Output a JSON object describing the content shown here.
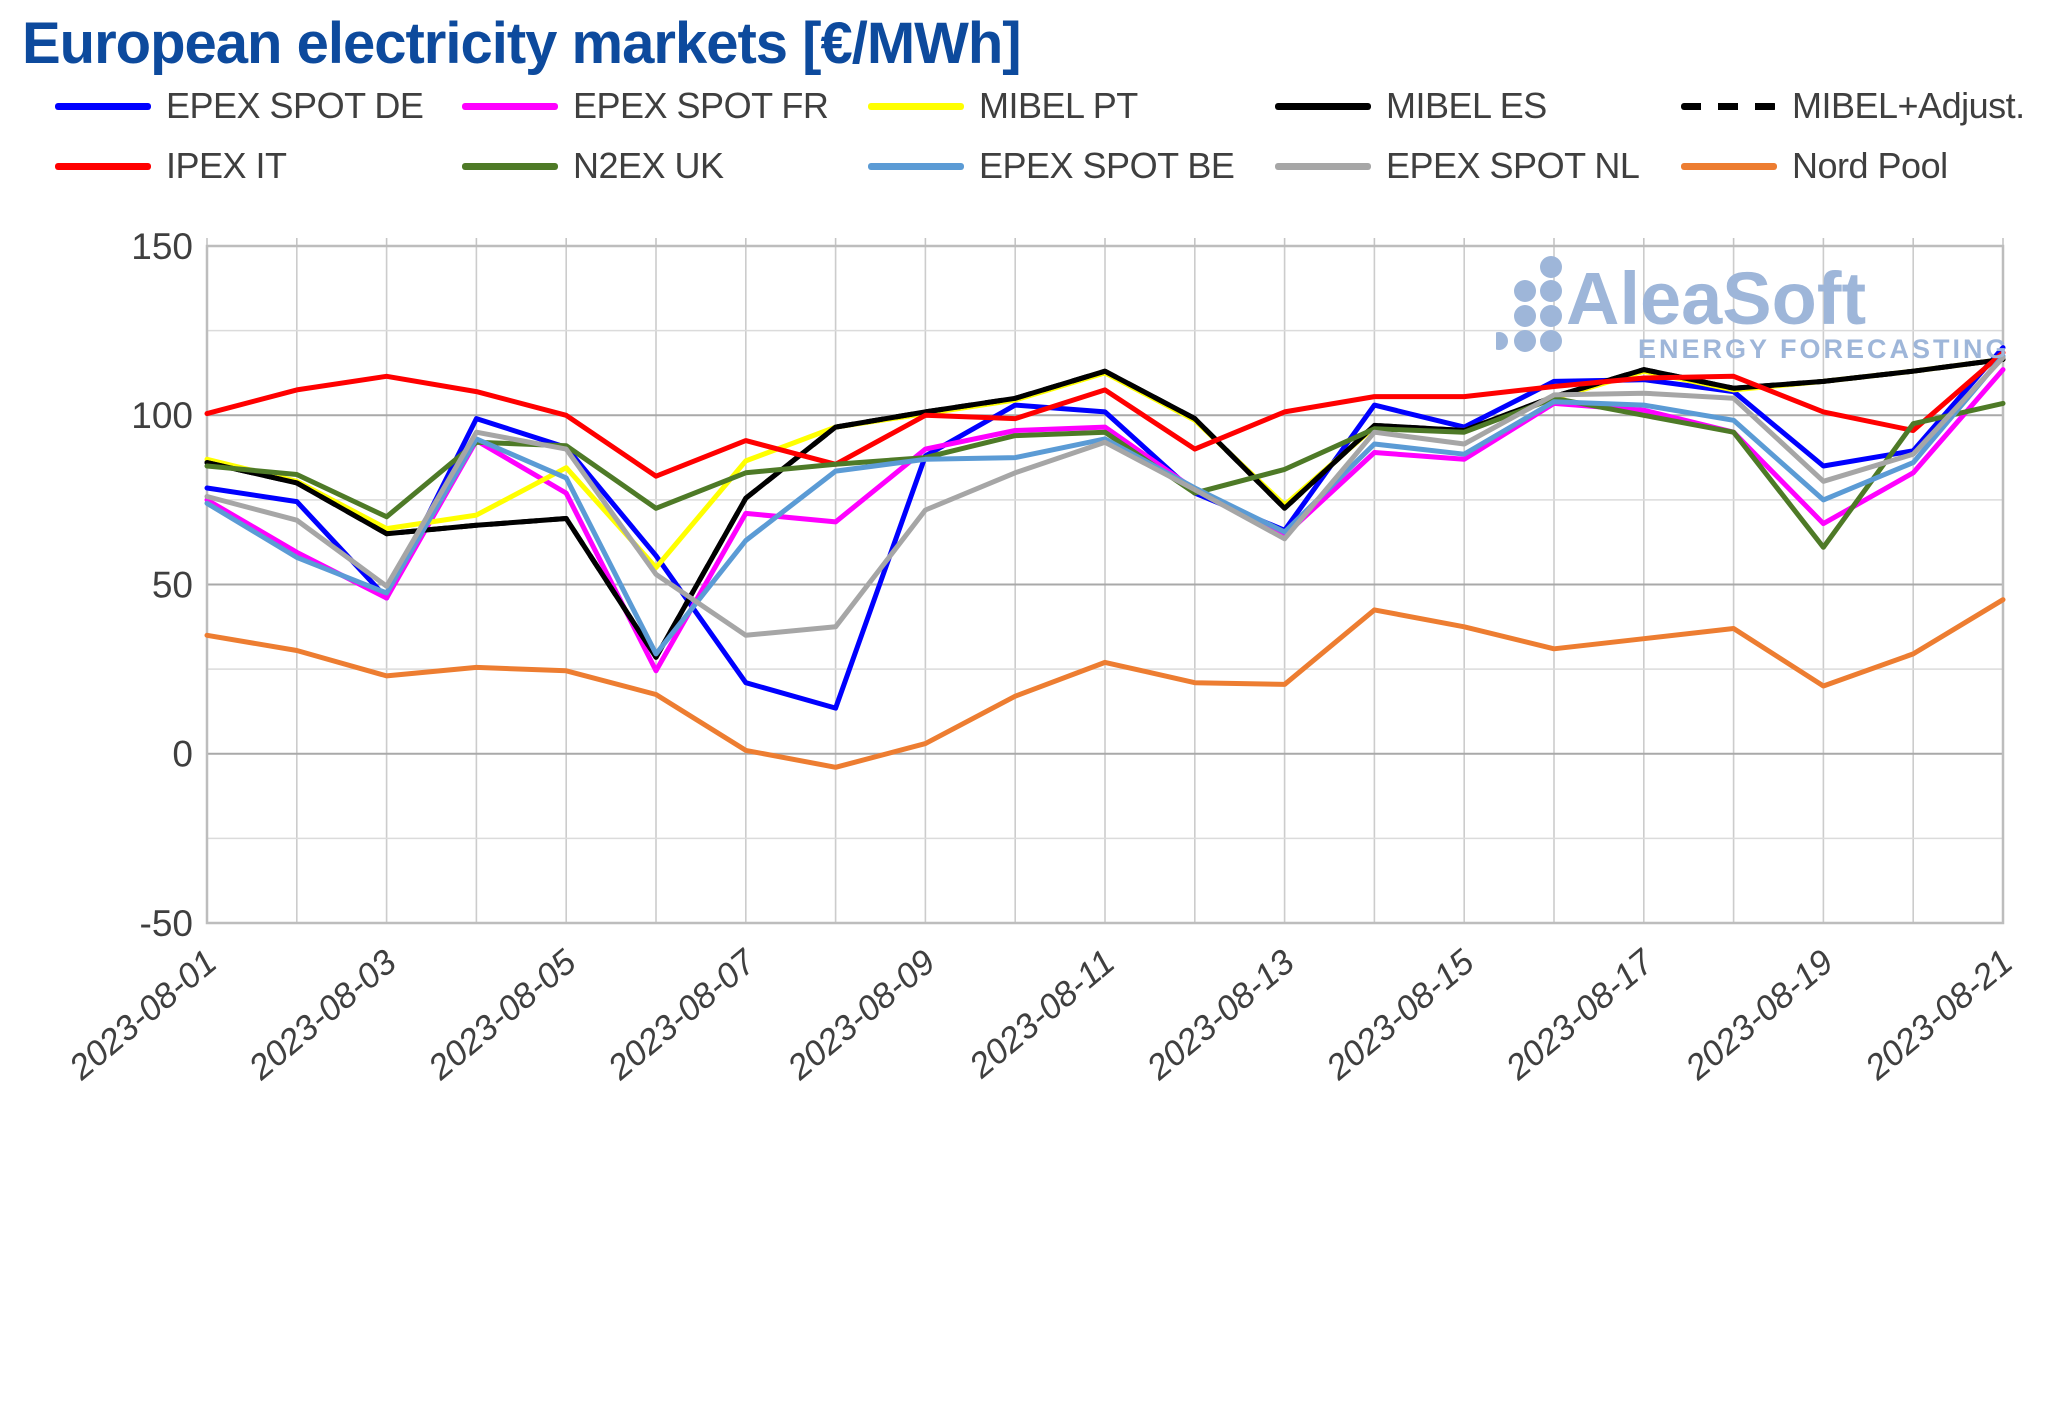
{
  "title": "European electricity markets [€/MWh]",
  "logo": {
    "name": "AleaSoft",
    "tagline": "ENERGY FORECASTING",
    "color": "#9eb6d9"
  },
  "title_color": "#0d4a9d",
  "chart_data": {
    "type": "line",
    "x": [
      "2023-08-01",
      "2023-08-02",
      "2023-08-03",
      "2023-08-04",
      "2023-08-05",
      "2023-08-06",
      "2023-08-07",
      "2023-08-08",
      "2023-08-09",
      "2023-08-10",
      "2023-08-11",
      "2023-08-12",
      "2023-08-13",
      "2023-08-14",
      "2023-08-15",
      "2023-08-16",
      "2023-08-17",
      "2023-08-18",
      "2023-08-19",
      "2023-08-20",
      "2023-08-21"
    ],
    "x_tick_labels": [
      "2023-08-01",
      "2023-08-03",
      "2023-08-05",
      "2023-08-07",
      "2023-08-09",
      "2023-08-11",
      "2023-08-13",
      "2023-08-15",
      "2023-08-17",
      "2023-08-19",
      "2023-08-21"
    ],
    "ylim": [
      -50,
      150
    ],
    "yticks": [
      150,
      100,
      50,
      0,
      -50
    ],
    "grid": "both, minor horizontal lines every 25",
    "legend_position": "top, two rows",
    "series": [
      {
        "name": "EPEX SPOT DE",
        "color": "#0000ff",
        "dash": false,
        "values": [
          78.5,
          74.5,
          46,
          99,
          90.5,
          58.5,
          21,
          13.5,
          88,
          103,
          101,
          77,
          66,
          103,
          96.5,
          110,
          110.5,
          107,
          85,
          89.5,
          120
        ]
      },
      {
        "name": "EPEX SPOT FR",
        "color": "#ff00ff",
        "dash": false,
        "values": [
          75,
          59.5,
          46,
          92.5,
          77,
          24.5,
          71,
          68.5,
          90,
          95.5,
          96.5,
          78,
          64.5,
          89,
          87,
          103.5,
          101.5,
          95,
          68,
          83,
          113.5
        ]
      },
      {
        "name": "MIBEL PT",
        "color": "#ffff00",
        "dash": false,
        "values": [
          87,
          80.5,
          66.5,
          70.5,
          84.5,
          55,
          86.5,
          96.5,
          100.5,
          104.5,
          112.5,
          98.5,
          73.5,
          96.5,
          95.5,
          105,
          113,
          107.5,
          110,
          113,
          116.5
        ]
      },
      {
        "name": "MIBEL ES",
        "color": "#000000",
        "dash": false,
        "values": [
          86,
          80,
          65,
          67.5,
          69.5,
          28.5,
          75.5,
          96.5,
          101,
          105,
          113,
          99,
          72.5,
          97,
          95.5,
          105.5,
          113.5,
          108,
          110,
          113,
          116.5
        ]
      },
      {
        "name": "MIBEL+Adjust.",
        "color": "#000000",
        "dash": true,
        "values": [
          86,
          80,
          65,
          67.5,
          69.5,
          28.5,
          75.5,
          96.5,
          101,
          105,
          113,
          99,
          72.5,
          97,
          95.5,
          105.5,
          113.5,
          108,
          110,
          113,
          116.5
        ]
      },
      {
        "name": "IPEX IT",
        "color": "#ff0000",
        "dash": false,
        "values": [
          100.5,
          107.5,
          111.5,
          107,
          100,
          82,
          92.5,
          85.5,
          100,
          99,
          107.5,
          90,
          101,
          105.5,
          105.5,
          108.5,
          111,
          111.5,
          101,
          95.5,
          118.5
        ]
      },
      {
        "name": "N2EX UK",
        "color": "#4e7a27",
        "dash": false,
        "values": [
          85,
          82.5,
          70,
          92,
          91,
          72.5,
          83,
          85.5,
          87.5,
          94,
          95,
          77,
          84,
          96,
          95,
          105,
          100,
          95,
          61,
          97.5,
          103.5
        ]
      },
      {
        "name": "EPEX SPOT BE",
        "color": "#5b9bd5",
        "dash": false,
        "values": [
          74,
          58,
          47.5,
          93,
          81.5,
          29.5,
          63,
          83.5,
          87,
          87.5,
          93,
          78.5,
          65.5,
          91.5,
          88.5,
          104,
          103,
          98.5,
          75,
          86,
          117.5
        ]
      },
      {
        "name": "EPEX SPOT NL",
        "color": "#a6a6a6",
        "dash": false,
        "values": [
          76,
          69,
          49.5,
          95,
          90,
          53,
          35,
          37.5,
          72,
          83,
          92,
          78,
          63.5,
          95,
          91.5,
          106,
          106.5,
          105,
          80.5,
          88.5,
          117
        ]
      },
      {
        "name": "Nord Pool",
        "color": "#ed7d31",
        "dash": false,
        "values": [
          35,
          30.5,
          23,
          25.5,
          24.5,
          17.5,
          1,
          -4,
          3,
          17,
          27,
          21,
          20.5,
          42.5,
          37.5,
          31,
          34,
          37,
          20,
          29.5,
          45.5
        ]
      }
    ]
  }
}
